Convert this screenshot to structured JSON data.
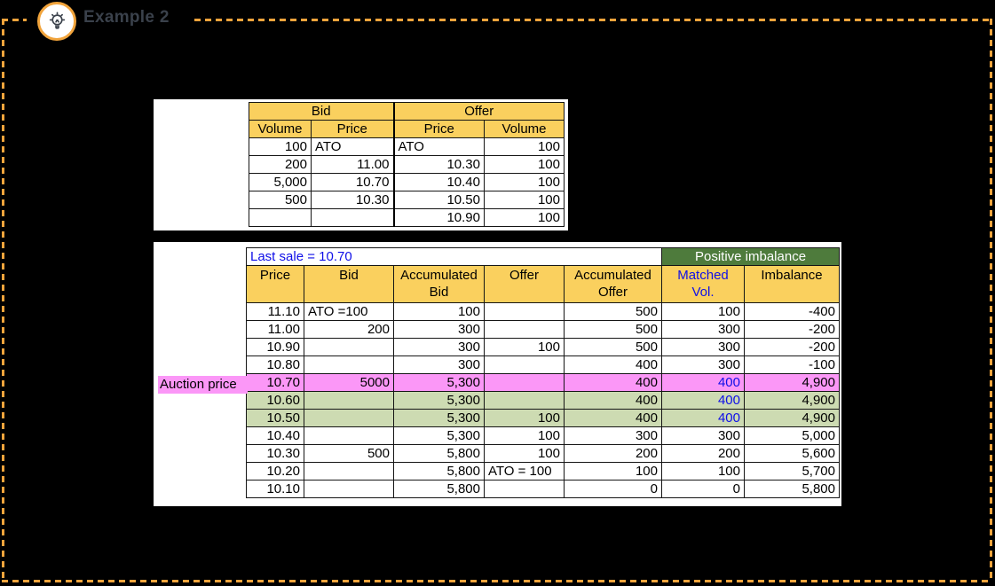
{
  "header": {
    "title": "Example 2",
    "icon": "lightbulb-icon"
  },
  "colors": {
    "accent_orange": "#F1A43C",
    "header_yellow": "#FAD05E",
    "banner_green": "#4E7B3C",
    "highlight_pink": "#FB97F7",
    "highlight_green": "#CDDBB2",
    "text_blue": "#0F0FE8",
    "title_gray": "#3A414B",
    "background": "#000000"
  },
  "bid_offer_table": {
    "group_headers": [
      "Bid",
      "Offer"
    ],
    "col_headers": [
      "Volume",
      "Price",
      "Price",
      "Volume"
    ],
    "rows": [
      [
        "100",
        "ATO",
        "ATO",
        "100"
      ],
      [
        "200",
        "11.00",
        "10.30",
        "100"
      ],
      [
        "5,000",
        "10.70",
        "10.40",
        "100"
      ],
      [
        "500",
        "10.30",
        "10.50",
        "100"
      ],
      [
        "",
        "",
        "10.90",
        "100"
      ]
    ]
  },
  "auction_table": {
    "last_sale_label": "Last sale = 10.70",
    "imbalance_banner": "Positive imbalance",
    "col_headers": [
      "Price",
      "Bid",
      "Accumulated Bid",
      "Offer",
      "Accumulated Offer",
      "Matched Vol.",
      "Imbalance"
    ],
    "blue_header_index": 5,
    "rows": [
      {
        "cells": [
          "11.10",
          "ATO =100",
          "100",
          "",
          "500",
          "100",
          "-400"
        ],
        "bg": "white",
        "matched_blue": false
      },
      {
        "cells": [
          "11.00",
          "200",
          "300",
          "",
          "500",
          "300",
          "-200"
        ],
        "bg": "white",
        "matched_blue": false
      },
      {
        "cells": [
          "10.90",
          "",
          "300",
          "100",
          "500",
          "300",
          "-200"
        ],
        "bg": "white",
        "matched_blue": false
      },
      {
        "cells": [
          "10.80",
          "",
          "300",
          "",
          "400",
          "300",
          "-100"
        ],
        "bg": "white",
        "matched_blue": false
      },
      {
        "cells": [
          "10.70",
          "5000",
          "5,300",
          "",
          "400",
          "400",
          "4,900"
        ],
        "bg": "pink",
        "matched_blue": true
      },
      {
        "cells": [
          "10.60",
          "",
          "5,300",
          "",
          "400",
          "400",
          "4,900"
        ],
        "bg": "green",
        "matched_blue": true
      },
      {
        "cells": [
          "10.50",
          "",
          "5,300",
          "100",
          "400",
          "400",
          "4,900"
        ],
        "bg": "green",
        "matched_blue": true
      },
      {
        "cells": [
          "10.40",
          "",
          "5,300",
          "100",
          "300",
          "300",
          "5,000"
        ],
        "bg": "white",
        "matched_blue": false
      },
      {
        "cells": [
          "10.30",
          "500",
          "5,800",
          "100",
          "200",
          "200",
          "5,600"
        ],
        "bg": "white",
        "matched_blue": false
      },
      {
        "cells": [
          "10.20",
          "",
          "5,800",
          "ATO = 100",
          "100",
          "100",
          "5,700"
        ],
        "bg": "white",
        "matched_blue": false
      },
      {
        "cells": [
          "10.10",
          "",
          "5,800",
          "",
          "0",
          "0",
          "5,800"
        ],
        "bg": "white",
        "matched_blue": false
      }
    ]
  },
  "auction_price_label": "Auction price"
}
